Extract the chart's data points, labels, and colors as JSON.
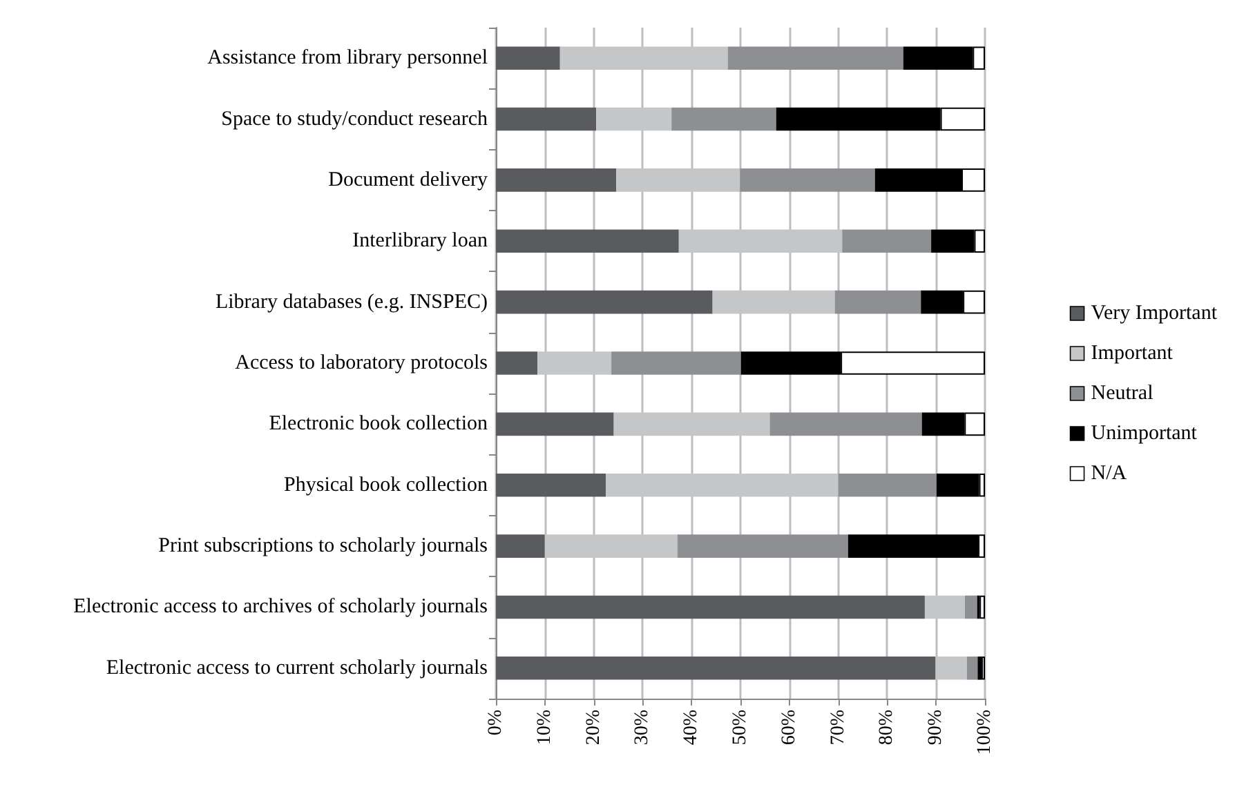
{
  "chart_data": {
    "type": "bar",
    "orientation": "horizontal",
    "stacked": true,
    "categories": [
      "Assistance from library personnel",
      "Space to study/conduct research",
      "Document delivery",
      "Interlibrary loan",
      "Library databases (e.g. INSPEC)",
      "Access to laboratory protocols",
      "Electronic book collection",
      "Physical book collection",
      "Print subscriptions to scholarly journals",
      "Electronic access to archives of scholarly journals",
      "Electronic access to current scholarly journals"
    ],
    "series": [
      {
        "name": "Very Important",
        "color": "#5a5b5f",
        "values": [
          13.1,
          20.5,
          24.6,
          37.4,
          44.3,
          8.5,
          24.1,
          22.5,
          10.0,
          87.7,
          89.9
        ]
      },
      {
        "name": "Important",
        "color": "#c5c6c8",
        "values": [
          34.3,
          15.4,
          25.3,
          33.4,
          25.0,
          15.1,
          31.9,
          47.5,
          27.1,
          8.2,
          6.4
        ]
      },
      {
        "name": "Neutral",
        "color": "#8e8f93",
        "values": [
          35.9,
          21.4,
          27.6,
          18.2,
          17.6,
          26.5,
          31.1,
          20.1,
          34.9,
          2.5,
          2.2
        ]
      },
      {
        "name": "Unimportant",
        "color": "#000000",
        "values": [
          14.2,
          33.6,
          17.7,
          8.8,
          8.6,
          20.4,
          8.7,
          8.7,
          26.6,
          0.5,
          0.8
        ]
      },
      {
        "name": "N/A",
        "color": "#ffffff",
        "values": [
          2.5,
          9.1,
          4.8,
          2.2,
          4.5,
          29.5,
          4.2,
          1.2,
          1.4,
          1.1,
          0.7
        ]
      }
    ],
    "xlim": [
      0,
      100
    ],
    "xticks": [
      {
        "value": 0,
        "label": "0%"
      },
      {
        "value": 10,
        "label": "10%"
      },
      {
        "value": 20,
        "label": "20%"
      },
      {
        "value": 30,
        "label": "30%"
      },
      {
        "value": 40,
        "label": "40%"
      },
      {
        "value": 50,
        "label": "50%"
      },
      {
        "value": 60,
        "label": "60%"
      },
      {
        "value": 70,
        "label": "70%"
      },
      {
        "value": 80,
        "label": "80%"
      },
      {
        "value": 90,
        "label": "90%"
      },
      {
        "value": 100,
        "label": "100%"
      }
    ],
    "grid": "x",
    "legend": "right"
  }
}
